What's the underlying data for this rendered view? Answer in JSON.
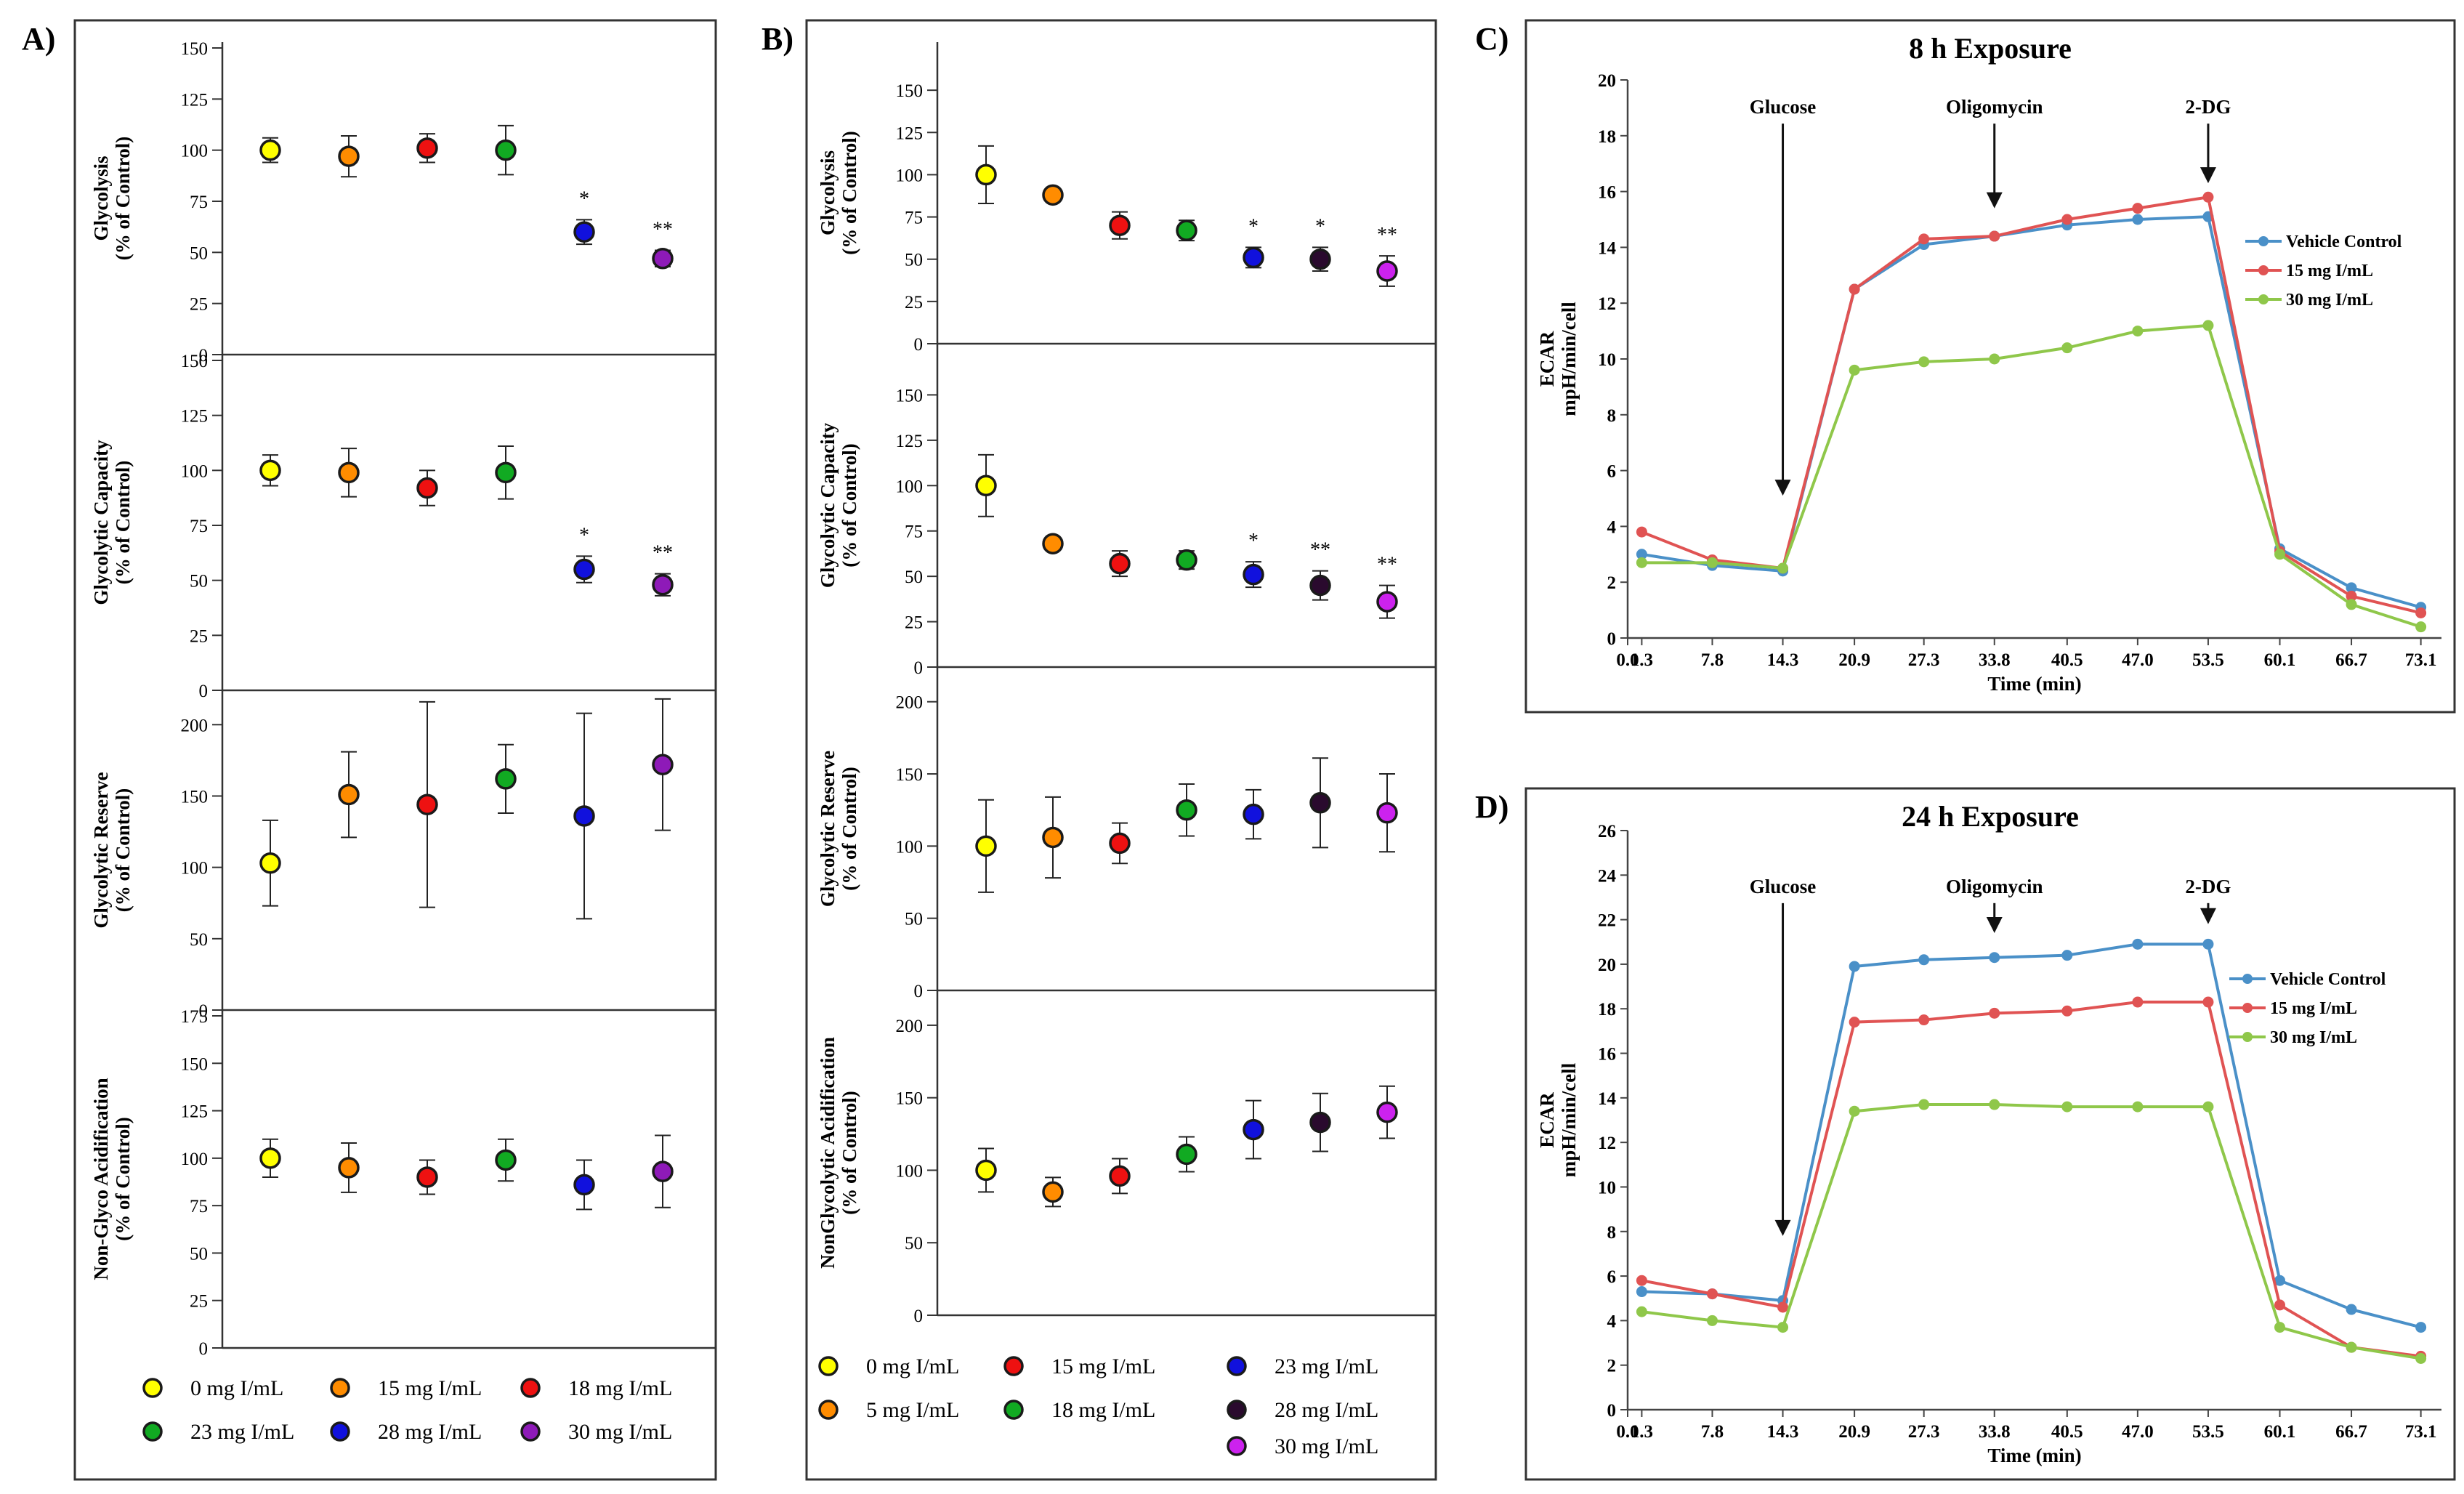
{
  "panels": {
    "a": "A)",
    "b": "B)",
    "c": "C)",
    "d": "D)"
  },
  "chart_data": [
    {
      "type": "scatter",
      "panel": "A)",
      "categories": [
        "0 mg I/mL",
        "15 mg I/mL",
        "18 mg I/mL",
        "23 mg I/mL",
        "28 mg I/mL",
        "30 mg I/mL"
      ],
      "colors": [
        "#ffff00",
        "#ff8c00",
        "#ee1111",
        "#11aa22",
        "#1111dd",
        "#8e1ab8"
      ],
      "legend": [
        "0 mg I/mL",
        "15 mg I/mL",
        "18 mg I/mL",
        "23 mg I/mL",
        "28 mg I/mL",
        "30 mg I/mL"
      ],
      "subplots": [
        {
          "ylabel": [
            "Glycolysis",
            "(% of Control)"
          ],
          "ylim": [
            0,
            150
          ],
          "ticks": [
            0,
            25,
            50,
            75,
            100,
            125,
            150
          ],
          "tick_labels": [
            "0",
            "25",
            "50",
            "75",
            "100",
            "125",
            "150"
          ],
          "values": [
            100,
            97,
            101,
            100,
            60,
            47
          ],
          "errors": [
            6,
            10,
            7,
            12,
            6,
            4
          ],
          "annotations": [
            "",
            "",
            "",
            "",
            "*",
            "**"
          ]
        },
        {
          "ylabel": [
            "Glycolytic Capacity",
            "(% of Control)"
          ],
          "ylim": [
            0,
            150
          ],
          "ticks": [
            0,
            25,
            50,
            75,
            100,
            125,
            150
          ],
          "tick_labels": [
            "0",
            "25",
            "50",
            "75",
            "100",
            "125",
            "150"
          ],
          "values": [
            100,
            99,
            92,
            99,
            55,
            48
          ],
          "errors": [
            7,
            11,
            8,
            12,
            6,
            5
          ],
          "annotations": [
            "",
            "",
            "",
            "",
            "*",
            "**"
          ]
        },
        {
          "ylabel": [
            "Glycolytic Reserve",
            "(% of Control)"
          ],
          "ylim": [
            0,
            220
          ],
          "ticks": [
            0,
            50,
            100,
            150,
            200
          ],
          "tick_labels": [
            "0",
            "50",
            "100",
            "150",
            "200"
          ],
          "values": [
            103,
            151,
            144,
            162,
            136,
            172
          ],
          "errors": [
            30,
            30,
            72,
            24,
            72,
            46
          ],
          "annotations": [
            "",
            "",
            "",
            "",
            "",
            ""
          ]
        },
        {
          "ylabel": [
            "Non-Glyco Acidification",
            "(% of Control)"
          ],
          "ylim": [
            0,
            175
          ],
          "ticks": [
            0,
            25,
            50,
            75,
            100,
            125,
            150,
            175
          ],
          "tick_labels": [
            "0",
            "25",
            "50",
            "75",
            "100",
            "125",
            "150",
            "175"
          ],
          "values": [
            100,
            95,
            90,
            99,
            86,
            93
          ],
          "errors": [
            10,
            13,
            9,
            11,
            13,
            19
          ],
          "annotations": [
            "",
            "",
            "",
            "",
            "",
            ""
          ]
        }
      ]
    },
    {
      "type": "scatter",
      "panel": "B)",
      "categories": [
        "0 mg I/mL",
        "5 mg I/mL",
        "15 mg I/mL",
        "18 mg I/mL",
        "23 mg I/mL",
        "28 mg I/mL",
        "30 mg I/mL"
      ],
      "colors": [
        "#ffff00",
        "#ff8c00",
        "#ee1111",
        "#11aa22",
        "#1111dd",
        "#2a0a2e",
        "#cc22ee"
      ],
      "legend": [
        "0 mg I/mL",
        "5 mg I/mL",
        "15 mg I/mL",
        "18 mg I/mL",
        "23 mg I/mL",
        "28 mg I/mL",
        "30 mg I/mL"
      ],
      "subplots": [
        {
          "ylabel": [
            "Glycolysis",
            "(% of Control)"
          ],
          "ylim": [
            0,
            175
          ],
          "ticks": [
            0,
            25,
            50,
            75,
            100,
            125,
            150
          ],
          "tick_labels": [
            "0",
            "25",
            "50",
            "75",
            "100",
            "125",
            "150"
          ],
          "values": [
            100,
            88,
            70,
            67,
            51,
            50,
            43
          ],
          "errors": [
            17,
            3,
            8,
            6,
            6,
            7,
            9
          ],
          "annotations": [
            "",
            "",
            "",
            "",
            "*",
            "*",
            "**"
          ]
        },
        {
          "ylabel": [
            "Glycolytic Capacity",
            "(% of Control)"
          ],
          "ylim": [
            0,
            175
          ],
          "ticks": [
            0,
            25,
            50,
            75,
            100,
            125,
            150
          ],
          "tick_labels": [
            "0",
            "25",
            "50",
            "75",
            "100",
            "125",
            "150"
          ],
          "values": [
            100,
            68,
            57,
            59,
            51,
            45,
            36
          ],
          "errors": [
            17,
            3,
            7,
            5,
            7,
            8,
            9
          ],
          "annotations": [
            "",
            "",
            "",
            "",
            "*",
            "**",
            "**"
          ]
        },
        {
          "ylabel": [
            "Glycolytic Reserve",
            "(% of  Control)"
          ],
          "ylim": [
            0,
            220
          ],
          "ticks": [
            0,
            50,
            100,
            150,
            200
          ],
          "tick_labels": [
            "0",
            "50",
            "100",
            "150",
            "200"
          ],
          "values": [
            100,
            106,
            102,
            125,
            122,
            130,
            123
          ],
          "errors": [
            32,
            28,
            14,
            18,
            17,
            31,
            27
          ],
          "annotations": [
            "",
            "",
            "",
            "",
            "",
            "",
            ""
          ]
        },
        {
          "ylabel": [
            "NonGlycolytic Acidification",
            "(% of Control)"
          ],
          "ylim": [
            0,
            220
          ],
          "ticks": [
            0,
            50,
            100,
            150,
            200
          ],
          "tick_labels": [
            "0",
            "50",
            "100",
            "150",
            "200"
          ],
          "values": [
            100,
            85,
            96,
            111,
            128,
            133,
            140
          ],
          "errors": [
            15,
            10,
            12,
            12,
            20,
            20,
            18
          ],
          "annotations": [
            "",
            "",
            "",
            "",
            "",
            "",
            ""
          ]
        }
      ]
    },
    {
      "type": "line",
      "panel": "C)",
      "title": "8 h Exposure",
      "xlabel": "Time (min)",
      "ylabel": [
        "ECAR",
        "mpH/min/cell"
      ],
      "x": [
        1.3,
        7.8,
        14.3,
        20.9,
        27.3,
        33.8,
        40.5,
        47.0,
        53.5,
        60.1,
        66.7,
        73.1
      ],
      "x_tick_labels": [
        "0.0",
        "1.3",
        "7.8",
        "14.3",
        "20.9",
        "27.3",
        "33.8",
        "40.5",
        "47.0",
        "53.5",
        "60.1",
        "66.7",
        "73.1"
      ],
      "xlim": [
        0,
        75
      ],
      "ylim": [
        0,
        20
      ],
      "y_ticks": [
        0,
        2,
        4,
        6,
        8,
        10,
        12,
        14,
        16,
        18,
        20
      ],
      "y_tick_labels": [
        "0",
        "2",
        "4",
        "6",
        "8",
        "10",
        "12",
        "14",
        "16",
        "18",
        "20"
      ],
      "series": [
        {
          "name": "Vehicle Control",
          "color": "#4a90c8",
          "values": [
            3.0,
            2.6,
            2.4,
            12.5,
            14.1,
            14.4,
            14.8,
            15.0,
            15.1,
            3.2,
            1.8,
            1.1
          ]
        },
        {
          "name": "15 mg I/mL",
          "color": "#e05353",
          "values": [
            3.8,
            2.8,
            2.5,
            12.5,
            14.3,
            14.4,
            15.0,
            15.4,
            15.8,
            3.1,
            1.5,
            0.9
          ]
        },
        {
          "name": "30 mg I/mL",
          "color": "#8fc74a",
          "values": [
            2.7,
            2.7,
            2.5,
            9.6,
            9.9,
            10.0,
            10.4,
            11.0,
            11.2,
            3.0,
            1.2,
            0.4
          ]
        }
      ],
      "annotations": [
        {
          "text": "Glucose",
          "x": 14.3,
          "y_tip": 5.1,
          "y_text": 18.8
        },
        {
          "text": "Oligomycin",
          "x": 33.8,
          "y_tip": 15.4,
          "y_text": 18.8
        },
        {
          "text": "2-DG",
          "x": 53.5,
          "y_tip": 16.3,
          "y_text": 18.8
        }
      ]
    },
    {
      "type": "line",
      "panel": "D)",
      "title": "24 h Exposure",
      "xlabel": "Time (min)",
      "ylabel": [
        "ECAR",
        "mpH/min/cell"
      ],
      "x": [
        1.3,
        7.8,
        14.3,
        20.9,
        27.3,
        33.8,
        40.5,
        47.0,
        53.5,
        60.1,
        66.7,
        73.1
      ],
      "x_tick_labels": [
        "0.0",
        "1.3",
        "7.8",
        "14.3",
        "20.9",
        "27.3",
        "33.8",
        "40.5",
        "47.0",
        "53.5",
        "60.1",
        "66.7",
        "73.1"
      ],
      "xlim": [
        0,
        75
      ],
      "ylim": [
        0,
        26
      ],
      "y_ticks": [
        0,
        2,
        4,
        6,
        8,
        10,
        12,
        14,
        16,
        18,
        20,
        22,
        24,
        26
      ],
      "y_tick_labels": [
        "0",
        "2",
        "4",
        "6",
        "8",
        "10",
        "12",
        "14",
        "16",
        "18",
        "20",
        "22",
        "24",
        "26"
      ],
      "series": [
        {
          "name": "Vehicle Control",
          "color": "#4a90c8",
          "values": [
            5.3,
            5.2,
            4.9,
            19.9,
            20.2,
            20.3,
            20.4,
            20.9,
            20.9,
            5.8,
            4.5,
            3.7
          ]
        },
        {
          "name": "15 mg I/mL",
          "color": "#e05353",
          "values": [
            5.8,
            5.2,
            4.6,
            17.4,
            17.5,
            17.8,
            17.9,
            18.3,
            18.3,
            4.7,
            2.8,
            2.4
          ]
        },
        {
          "name": "30 mg I/mL",
          "color": "#8fc74a",
          "values": [
            4.4,
            4.0,
            3.7,
            13.4,
            13.7,
            13.7,
            13.6,
            13.6,
            13.6,
            3.7,
            2.8,
            2.3
          ]
        }
      ],
      "annotations": [
        {
          "text": "Glucose",
          "x": 14.3,
          "y_tip": 7.8,
          "y_text": 23.2
        },
        {
          "text": "Oligomycin",
          "x": 33.8,
          "y_tip": 21.4,
          "y_text": 23.2
        },
        {
          "text": "2-DG",
          "x": 53.5,
          "y_tip": 21.8,
          "y_text": 23.2
        }
      ]
    }
  ]
}
